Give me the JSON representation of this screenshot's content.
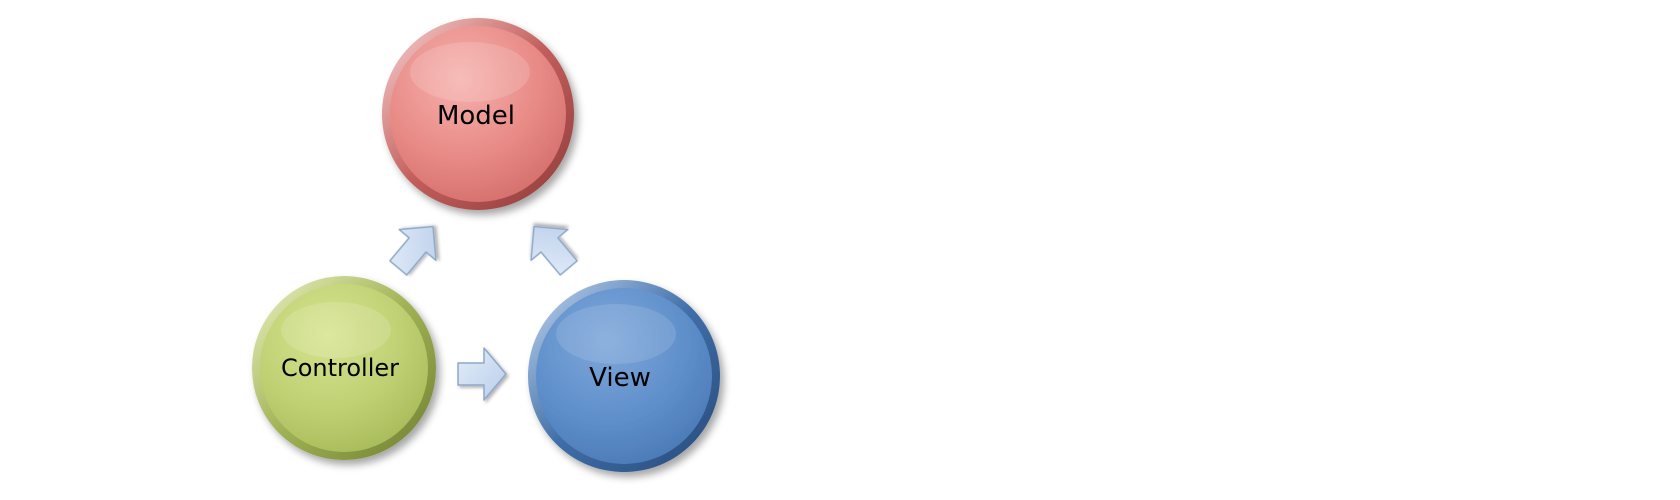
{
  "diagram": {
    "nodes": {
      "model": {
        "label": "Model",
        "color": "#e57f7f"
      },
      "controller": {
        "label": "Controller",
        "color": "#b8cc6a"
      },
      "view": {
        "label": "View",
        "color": "#5f8fca"
      }
    },
    "edges": [
      {
        "from": "controller",
        "to": "model"
      },
      {
        "from": "view",
        "to": "model"
      },
      {
        "from": "controller",
        "to": "view"
      }
    ],
    "arrow_color": "#c8d9f2"
  }
}
